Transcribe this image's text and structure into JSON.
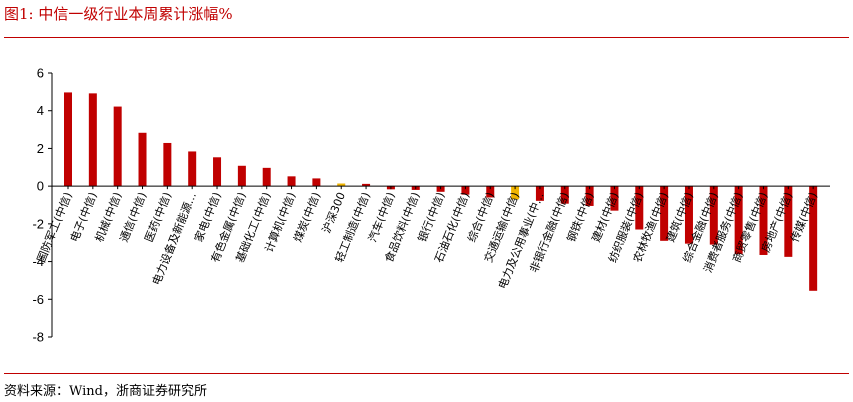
{
  "figure": {
    "title": "图1:   中信一级行业本周累计涨幅%",
    "source": "资料来源：Wind，浙商证券研究所"
  },
  "colors": {
    "default": "#c00000",
    "highlight": "#f0b400",
    "rule": "#c00000"
  },
  "chart_data": {
    "type": "bar",
    "ylim": [
      -8,
      6
    ],
    "yticks": [
      6,
      4,
      2,
      0,
      -2,
      -4,
      -6,
      -8
    ],
    "grid": false,
    "legend": "none",
    "highlight_categories": [
      "沪深300",
      "交通运输(中信)"
    ],
    "categories": [
      "国防军工(中信)",
      "电子(中信)",
      "机械(中信)",
      "通信(中信)",
      "医药(中信)",
      "电力设备及新能源…",
      "家电(中信)",
      "有色金属(中信)",
      "基础化工(中信)",
      "计算机(中信)",
      "煤炭(中信)",
      "沪深300",
      "轻工制造(中信)",
      "汽车(中信)",
      "食品饮料(中信)",
      "银行(中信)",
      "石油石化(中信)",
      "综合(中信)",
      "交通运输(中信)",
      "电力及公用事业(中…",
      "非银行金融(中信)",
      "钢铁(中信)",
      "建材(中信)",
      "纺织服装(中信)",
      "农林牧渔(中信)",
      "建筑(中信)",
      "综合金融(中信)",
      "消费者服务(中信)",
      "商贸零售(中信)",
      "房地产(中信)",
      "传媒(中信)"
    ],
    "values": [
      4.97,
      4.92,
      4.22,
      2.83,
      2.29,
      1.84,
      1.53,
      1.08,
      0.97,
      0.52,
      0.41,
      0.14,
      0.12,
      -0.17,
      -0.2,
      -0.3,
      -0.45,
      -0.6,
      -0.7,
      -0.78,
      -0.93,
      -1.05,
      -1.3,
      -2.3,
      -2.9,
      -3.05,
      -3.1,
      -3.6,
      -3.65,
      -3.75,
      -5.55
    ]
  }
}
